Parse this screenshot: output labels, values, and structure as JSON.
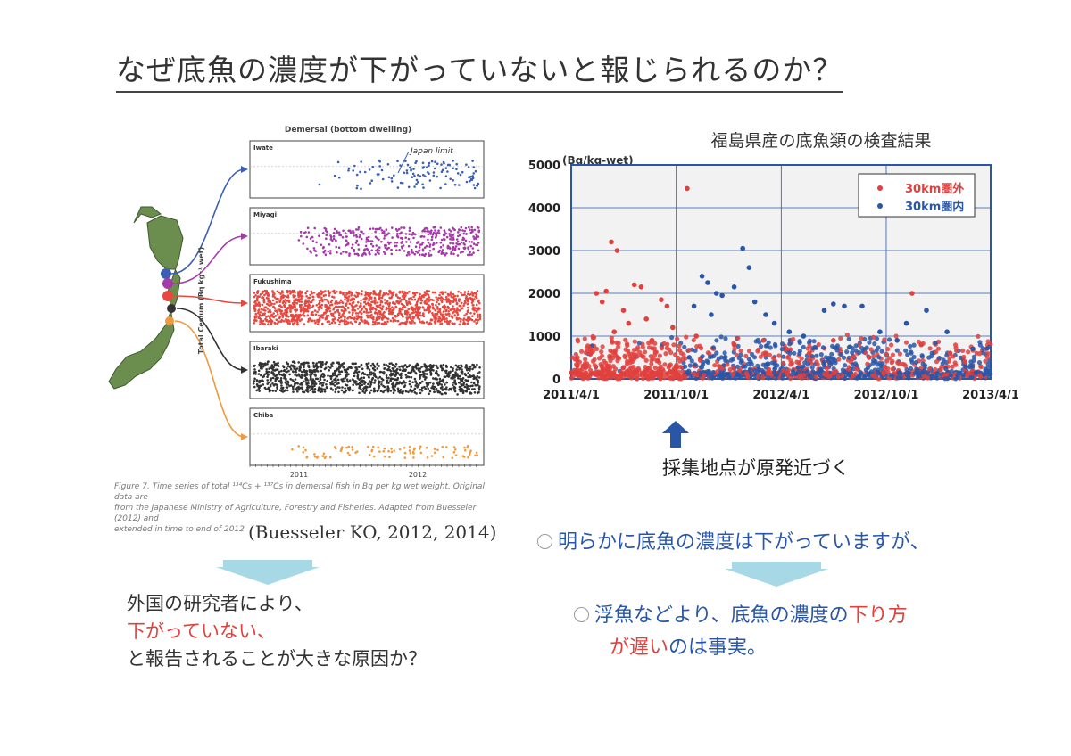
{
  "title": "なぜ底魚の濃度が下がっていないと報じられるのか？",
  "left_figure": {
    "header": "Demersal (bottom dwelling)",
    "japan_limit_label": "Japan limit",
    "y_axis_label": "Total Cesium (Bq kg⁻¹ wet)",
    "panels": [
      {
        "name": "Iwate",
        "color": "#3a5fb5"
      },
      {
        "name": "Miyagi",
        "color": "#a63aa8"
      },
      {
        "name": "Fukushima",
        "color": "#e8483f"
      },
      {
        "name": "Ibaraki",
        "color": "#333333"
      },
      {
        "name": "Chiba",
        "color": "#f09a3e"
      }
    ],
    "x_ticks": [
      "2011",
      "2012"
    ],
    "caption_line1": "Figure 7. Time series of total ¹³⁴Cs + ¹³⁷Cs in demersal fish in Bq per kg wet weight. Original data are",
    "caption_line2": "from the Japanese Ministry of Agriculture, Forestry and Fisheries. Adapted from Buesseler (2012) and",
    "caption_line3": "extended in time to end of 2012"
  },
  "citation": "(Buesseler KO, 2012, 2014)",
  "chart_data": {
    "type": "scatter",
    "title": "福島県産の底魚類の検査結果",
    "ylabel": "(Bq/kg-wet)",
    "ylim": [
      0,
      5000
    ],
    "y_ticks": [
      0,
      1000,
      2000,
      3000,
      4000,
      5000
    ],
    "x_ticks": [
      "2011/4/1",
      "2011/10/1",
      "2012/4/1",
      "2012/10/1",
      "2013/4/1"
    ],
    "xlim": [
      "2011-04-01",
      "2013-04-01"
    ],
    "grid": true,
    "legend_position": "top-right",
    "series": [
      {
        "name": "30km圏外",
        "color": "#e0413d",
        "points": [
          [
            "2011-06-10",
            3200
          ],
          [
            "2011-06-20",
            3000
          ],
          [
            "2011-05-15",
            2000
          ],
          [
            "2011-06-01",
            2050
          ],
          [
            "2011-05-25",
            1800
          ],
          [
            "2011-07-20",
            2200
          ],
          [
            "2011-08-01",
            2150
          ],
          [
            "2011-07-01",
            1600
          ],
          [
            "2011-09-05",
            1850
          ],
          [
            "2011-09-15",
            1700
          ],
          [
            "2011-10-20",
            4450
          ],
          [
            "2011-06-15",
            1100
          ],
          [
            "2011-07-10",
            1300
          ],
          [
            "2011-08-10",
            1400
          ],
          [
            "2011-08-20",
            900
          ],
          [
            "2011-05-05",
            700
          ],
          [
            "2011-09-25",
            1200
          ],
          [
            "2011-11-05",
            1000
          ],
          [
            "2012-01-10",
            800
          ],
          [
            "2012-03-01",
            900
          ],
          [
            "2012-04-10",
            700
          ],
          [
            "2012-05-20",
            600
          ],
          [
            "2012-07-01",
            900
          ],
          [
            "2012-11-15",
            2000
          ],
          [
            "2012-12-01",
            800
          ],
          [
            "2013-01-20",
            600
          ],
          [
            "2012-09-01",
            500
          ],
          [
            "2013-02-15",
            400
          ]
        ]
      },
      {
        "name": "30km圏内",
        "color": "#2a56a8",
        "points": [
          [
            "2011-11-15",
            2400
          ],
          [
            "2011-11-25",
            2250
          ],
          [
            "2011-12-10",
            2000
          ],
          [
            "2011-12-20",
            1950
          ],
          [
            "2012-01-10",
            2150
          ],
          [
            "2012-01-25",
            3050
          ],
          [
            "2012-02-05",
            2600
          ],
          [
            "2012-02-15",
            1800
          ],
          [
            "2012-03-05",
            1500
          ],
          [
            "2012-03-20",
            1300
          ],
          [
            "2011-12-01",
            1500
          ],
          [
            "2011-11-01",
            1700
          ],
          [
            "2012-04-15",
            1100
          ],
          [
            "2012-06-15",
            1600
          ],
          [
            "2012-07-01",
            1750
          ],
          [
            "2012-07-20",
            1700
          ],
          [
            "2012-08-20",
            1700
          ],
          [
            "2012-05-10",
            1000
          ],
          [
            "2012-09-20",
            1100
          ],
          [
            "2012-10-20",
            900
          ],
          [
            "2012-12-10",
            1600
          ],
          [
            "2013-01-15",
            1100
          ],
          [
            "2013-03-01",
            700
          ],
          [
            "2012-11-05",
            1300
          ]
        ]
      }
    ]
  },
  "approach_text": "採集地点が原発近づく",
  "left_conclusion": {
    "line1": "外国の研究者により、",
    "line2": "下がっていない、",
    "line3": "と報告されることが大きな原因か？"
  },
  "right_bullets": {
    "bullet1": "明らかに底魚の濃度は下がっていますが、",
    "bullet2_a": "浮魚などより、底魚の濃度の",
    "bullet2_b": "下り方",
    "bullet2_c": "が遅い",
    "bullet2_d": "のは事実。"
  }
}
